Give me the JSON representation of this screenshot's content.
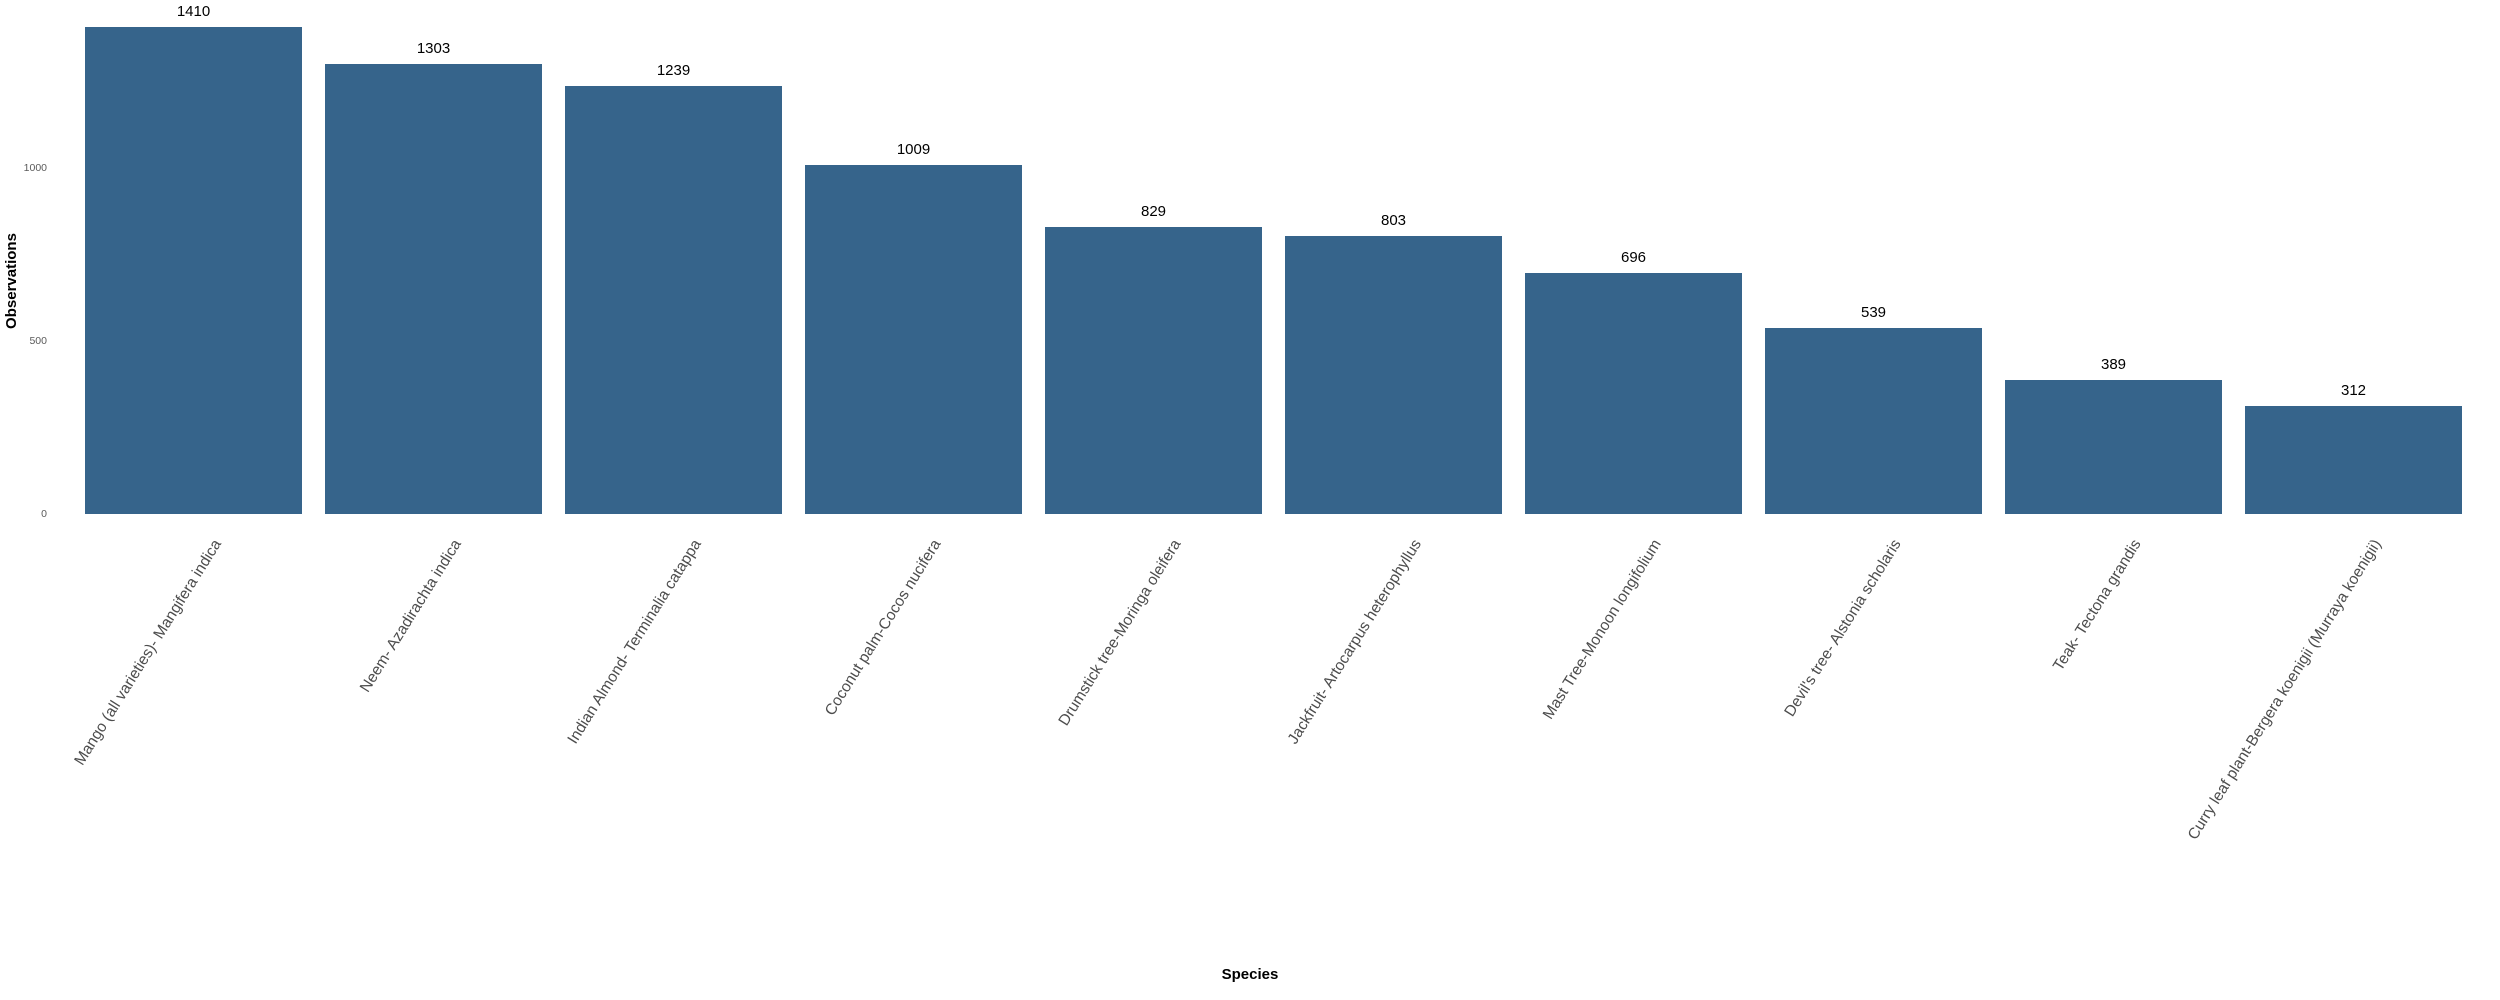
{
  "figure": {
    "background_color": "#ffffff"
  },
  "chart_data": {
    "type": "bar",
    "title": "",
    "xlabel": "Species",
    "ylabel": "Observations",
    "categories": [
      "Mango (all varieties)- Mangifera indica",
      "Neem- Azadirachta indica",
      "Indian Almond- Terminalia catappa",
      "Coconut palm-Cocos nucifera",
      "Drumstick tree-Moringa oleifera",
      "Jackfruit- Artocarpus heterophyllus",
      "Mast Tree-Monoon longifolium",
      "Devil's tree- Alstonia scholaris",
      "Teak- Tectona grandis",
      "Curry leaf plant-Bergera koenigii (Murraya koenigii)"
    ],
    "values": [
      1410,
      1303,
      1239,
      1009,
      829,
      803,
      696,
      539,
      389,
      312
    ],
    "value_labels_shown": true,
    "yticks": [
      0,
      500,
      1000
    ],
    "ylim": [
      0,
      1450
    ],
    "grid": false,
    "legend": "none",
    "x_tick_rotation_deg": 58,
    "bar_color": "#36648b",
    "value_label_color": "#000000",
    "x_tick_label_color": "#4d4d4d",
    "y_tick_label_color": "#5a5a5a",
    "axis_title_color": "#000000"
  }
}
